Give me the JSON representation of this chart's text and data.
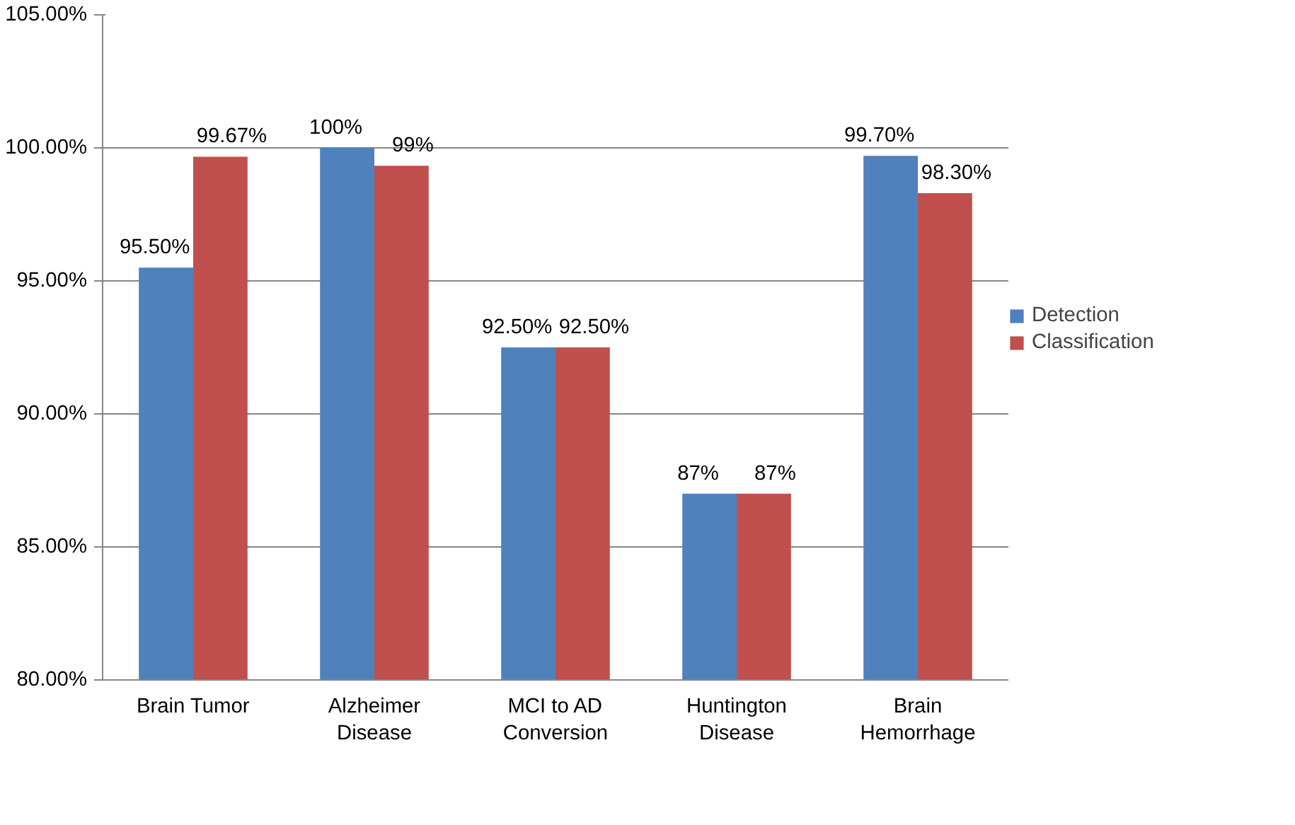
{
  "chart_data": {
    "type": "bar",
    "categories": [
      "Brain Tumor",
      "Alzheimer\nDisease",
      "MCI to AD\nConversion",
      "Huntington\nDisease",
      "Brain\nHemorrhage"
    ],
    "series": [
      {
        "name": "Detection",
        "color": "#4f81bd",
        "values": [
          95.5,
          100,
          92.5,
          87,
          99.7
        ],
        "value_labels": [
          "95.50%",
          "100%",
          "92.50%",
          "87%",
          "99.70%"
        ]
      },
      {
        "name": "Classification",
        "color": "#c0504d",
        "values": [
          99.67,
          99.33,
          92.5,
          87,
          98.3
        ],
        "value_labels": [
          "99.67%",
          "99%",
          "92.50%",
          "87%",
          "98.30%"
        ]
      }
    ],
    "ylim": [
      80,
      105
    ],
    "yticks": [
      {
        "value": 80,
        "label": "80.00%"
      },
      {
        "value": 85,
        "label": "85.00%"
      },
      {
        "value": 90,
        "label": "90.00%"
      },
      {
        "value": 95,
        "label": "95.00%"
      },
      {
        "value": 100,
        "label": "100.00%"
      },
      {
        "value": 105,
        "label": "105.00%"
      }
    ],
    "grid": "y",
    "legend": "right"
  }
}
